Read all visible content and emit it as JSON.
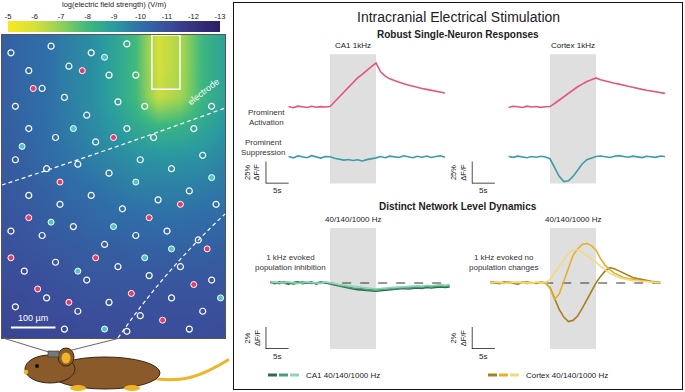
{
  "title": "Intracranial Electrical Stimulation",
  "headings": [
    "Robust Single-Neuron Responses",
    "Distinct Network Level Dynamics"
  ],
  "row_labels": [
    [
      "Prominent",
      "Activation"
    ],
    [
      "Prominent",
      "Suppression"
    ]
  ],
  "chart_data": [
    {
      "type": "heatmap",
      "x": [
        0,
        50,
        100,
        150,
        200,
        250,
        300,
        350,
        400,
        450,
        500
      ],
      "y": [
        0,
        68,
        136,
        204,
        272,
        340,
        408,
        476,
        544,
        612,
        680
      ],
      "cells": [
        [
          -11.3,
          -11.3,
          -11.2,
          -11.2,
          -11.1,
          -11.1,
          -11.0,
          -11.0,
          -11.0,
          -11.0,
          -11.1
        ],
        [
          -11.2,
          -11.1,
          -11.0,
          -11.0,
          -10.9,
          -10.9,
          -10.9,
          -10.9,
          -10.9,
          -10.9,
          -10.9
        ],
        [
          -11.0,
          -11.0,
          -10.9,
          -10.8,
          -10.7,
          -10.7,
          -10.7,
          -10.7,
          -10.7,
          -10.7,
          -10.7
        ],
        [
          -10.9,
          -10.8,
          -10.7,
          -10.6,
          -10.5,
          -10.5,
          -10.4,
          -10.4,
          -10.4,
          -10.4,
          -10.5
        ],
        [
          -10.8,
          -10.7,
          -10.5,
          -10.4,
          -10.2,
          -10.1,
          -10.1,
          -10.0,
          -10.0,
          -10.1,
          -10.1
        ],
        [
          -10.7,
          -10.5,
          -10.4,
          -10.1,
          -10.0,
          -9.8,
          -9.6,
          -9.6,
          -9.6,
          -9.7,
          -9.8
        ],
        [
          -10.6,
          -10.4,
          -10.1,
          -9.9,
          -9.6,
          -9.4,
          -9.2,
          -9.1,
          -9.1,
          -9.2,
          -9.5
        ],
        [
          -10.5,
          -10.3,
          -10.0,
          -9.7,
          -9.4,
          -9.0,
          -8.5,
          -8.1,
          -8.2,
          -8.6,
          -9.1
        ],
        [
          -10.5,
          -10.2,
          -10.0,
          -9.6,
          -9.3,
          -8.7,
          -7.9,
          -6.2,
          -6.7,
          -8.1,
          -8.8
        ],
        [
          -10.5,
          -10.2,
          -10.0,
          -9.6,
          -9.3,
          -8.7,
          -7.9,
          -6.0,
          -6.6,
          -8.1,
          -8.8
        ],
        [
          -10.5,
          -10.2,
          -10.0,
          -9.6,
          -9.3,
          -8.7,
          -7.9,
          -6.0,
          -6.6,
          -8.1,
          -8.8
        ]
      ],
      "xlim": [
        0,
        500
      ],
      "ylim": [
        0,
        680
      ],
      "tick_labels": false,
      "colorbar": {
        "title": "log(electric field strength) (V/m)",
        "range": [
          -5,
          -13
        ],
        "ticks": [
          -5,
          -6,
          -7,
          -8,
          -9,
          -10,
          -11,
          -12,
          -13
        ]
      },
      "label": "electrode",
      "electrode_box": {
        "x": [
          336,
          399
        ],
        "y": [
          558,
          680
        ]
      },
      "scale_bar": {
        "length": 100,
        "label": "100 µm"
      },
      "series": [
        {
          "color": "#ffffff",
          "marker": "circle-open",
          "x": [
            20,
            60,
            110,
            150,
            200,
            240,
            280,
            90,
            30,
            140,
            190,
            260,
            300,
            320,
            60,
            120,
            210,
            280,
            340,
            430,
            470,
            30,
            100,
            170,
            240,
            310,
            380,
            450,
            60,
            130,
            200,
            270,
            350,
            420,
            480,
            20,
            90,
            160,
            230,
            300,
            370,
            440,
            50,
            120,
            190,
            260,
            330,
            400,
            470,
            30,
            100,
            170,
            240,
            310,
            380,
            450,
            140,
            280,
            420
          ],
          "y": [
            640,
            600,
            655,
            610,
            640,
            590,
            660,
            560,
            520,
            540,
            500,
            530,
            590,
            520,
            470,
            450,
            440,
            470,
            450,
            470,
            520,
            400,
            380,
            390,
            370,
            400,
            380,
            410,
            320,
            300,
            320,
            290,
            310,
            330,
            300,
            240,
            230,
            250,
            210,
            230,
            240,
            220,
            150,
            170,
            130,
            160,
            140,
            160,
            130,
            70,
            90,
            60,
            80,
            50,
            90,
            60,
            20,
            15,
            20
          ]
        },
        {
          "color": "#e8396a",
          "marker": "circle",
          "x": [
            70,
            180,
            250,
            400,
            130,
            60,
            330,
            210,
            460,
            80,
            290,
            360,
            20,
            150,
            430
          ],
          "y": [
            560,
            600,
            450,
            300,
            350,
            270,
            270,
            180,
            200,
            110,
            100,
            40,
            180,
            80,
            120
          ]
        },
        {
          "color": "#4fc3c8",
          "marker": "circle",
          "x": [
            230,
            45,
            160,
            300,
            470,
            110,
            250,
            380,
            170,
            320,
            230,
            490
          ],
          "y": [
            630,
            430,
            470,
            350,
            360,
            260,
            250,
            200,
            150,
            180,
            20,
            90
          ]
        }
      ]
    },
    {
      "type": "line",
      "title": "CA1 1kHz",
      "x": [
        -9,
        -8,
        -7,
        -6,
        -5,
        -4,
        -3,
        -2,
        -1,
        0,
        1,
        2,
        3,
        4,
        5,
        6,
        7,
        8,
        9,
        10,
        11,
        12,
        13,
        14,
        15,
        16,
        17,
        18,
        19,
        20,
        21,
        22,
        23,
        24,
        25
      ],
      "xlim": [
        -14,
        26
      ],
      "ylim": [
        -30,
        60
      ],
      "y2lim": [
        -30,
        15
      ],
      "tick_labels": false,
      "stimulus": [
        0,
        10
      ],
      "series": [
        {
          "color": "#e4567f",
          "values": [
            0.5,
            -0.8,
            1.0,
            0.2,
            -0.5,
            0.8,
            -0.3,
            0.4,
            0.0,
            0.5,
            6,
            12,
            17,
            22,
            28,
            33,
            37,
            42,
            46,
            50,
            40,
            35,
            32,
            30,
            28,
            26.5,
            25,
            23.5,
            22.5,
            21,
            20,
            19,
            18,
            17,
            16
          ]
        },
        {
          "color": "#3a9ea6",
          "axis": "y2",
          "values": [
            0.5,
            -1.0,
            1.2,
            0.3,
            -0.8,
            1.5,
            0.0,
            -1.2,
            0.6,
            0.2,
            -1.5,
            -2.5,
            -3.5,
            -2.8,
            -4.0,
            -3.2,
            -4.5,
            -3.0,
            -2.2,
            -1.0,
            0.5,
            -0.8,
            1.0,
            0.2,
            -0.6,
            1.4,
            0.3,
            -0.9,
            0.8,
            -0.2,
            1.1,
            -0.5,
            0.6,
            1.3,
            -0.4
          ]
        }
      ],
      "scale_bars": {
        "x": {
          "length": 5,
          "label": "5s"
        },
        "y": {
          "length": 25,
          "label": [
            "25%",
            "ΔF/F"
          ]
        }
      }
    },
    {
      "type": "line",
      "title": "Cortex 1kHz",
      "x": [
        -9,
        -8,
        -7,
        -6,
        -5,
        -4,
        -3,
        -2,
        -1,
        0,
        1,
        2,
        3,
        4,
        5,
        6,
        7,
        8,
        9,
        10,
        11,
        12,
        13,
        14,
        15,
        16,
        17,
        18,
        19,
        20,
        21,
        22,
        23,
        24,
        25
      ],
      "xlim": [
        -17,
        25
      ],
      "ylim": [
        -30,
        60
      ],
      "y2lim": [
        -30,
        15
      ],
      "tick_labels": false,
      "stimulus": [
        0,
        10
      ],
      "series": [
        {
          "color": "#e4567f",
          "values": [
            -0.5,
            0.8,
            0.2,
            -0.6,
            1.0,
            0.0,
            0.6,
            -0.4,
            0.3,
            0.5,
            4,
            8,
            12,
            16,
            20,
            23,
            26,
            29,
            31,
            33,
            31,
            29.5,
            28,
            27,
            26,
            24.5,
            23.5,
            22.5,
            21,
            20,
            19,
            18,
            17,
            16,
            15.5
          ]
        },
        {
          "color": "#3a9ea6",
          "axis": "y2",
          "values": [
            0.6,
            -0.4,
            1.0,
            0.2,
            -0.8,
            0.5,
            -0.3,
            0.9,
            0.0,
            -2,
            -12,
            -22,
            -28,
            -27,
            -22,
            -15,
            -8,
            -3,
            -1,
            0.5,
            1.2,
            0.4,
            -0.5,
            0.8,
            1.5,
            0.6,
            -0.3,
            1.0,
            0.2,
            -0.7,
            0.9,
            0.3,
            -0.4,
            1.1,
            0.5
          ]
        }
      ],
      "scale_bars": {
        "x": {
          "length": 5,
          "label": "5s"
        },
        "y": {
          "length": 25,
          "label": [
            "25%",
            "ΔF/F"
          ]
        }
      }
    },
    {
      "type": "line",
      "title": "40/140/1000 Hz",
      "annotation": [
        "1 kHz evoked",
        "population inhibition"
      ],
      "caption": "CA1 40/140/1000 Hz",
      "x": [
        -13,
        -12,
        -11,
        -10,
        -9,
        -8,
        -7,
        -6,
        -5,
        -4,
        -3,
        -2,
        -1,
        0,
        1,
        2,
        3,
        4,
        5,
        6,
        7,
        8,
        9,
        10,
        11,
        12,
        13,
        14,
        15,
        16,
        17,
        18,
        19,
        20,
        21,
        22,
        23,
        24,
        25,
        26
      ],
      "xlim": [
        -14,
        27
      ],
      "ylim": [
        -6,
        5
      ],
      "tick_labels": false,
      "stimulus": [
        0,
        10
      ],
      "reference_line": 0,
      "series": [
        {
          "color": "#2f6b4e",
          "values": [
            0.05,
            -0.05,
            0.1,
            0.0,
            -0.1,
            0.05,
            0.1,
            -0.05,
            0.0,
            0.1,
            -0.1,
            0.05,
            0.0,
            -0.1,
            -0.2,
            -0.3,
            -0.4,
            -0.5,
            -0.55,
            -0.6,
            -0.65,
            -0.7,
            -0.7,
            -0.75,
            -0.7,
            -0.65,
            -0.6,
            -0.6,
            -0.55,
            -0.5,
            -0.55,
            -0.5,
            -0.45,
            -0.5,
            -0.4,
            -0.45,
            -0.4,
            -0.35,
            -0.4,
            -0.35
          ]
        },
        {
          "color": "#45a07a",
          "values": [
            0.1,
            0.0,
            -0.05,
            0.1,
            0.05,
            -0.1,
            0.0,
            0.1,
            0.05,
            -0.05,
            0.0,
            0.1,
            0.05,
            0.0,
            -0.1,
            -0.2,
            -0.3,
            -0.35,
            -0.45,
            -0.5,
            -0.5,
            -0.6,
            -0.6,
            -0.65,
            -0.6,
            -0.55,
            -0.5,
            -0.55,
            -0.45,
            -0.4,
            -0.45,
            -0.4,
            -0.35,
            -0.4,
            -0.3,
            -0.35,
            -0.3,
            -0.25,
            -0.3,
            -0.25
          ]
        },
        {
          "color": "#8fd3b0",
          "values": [
            -0.05,
            0.1,
            0.05,
            0.0,
            0.1,
            0.05,
            -0.05,
            0.0,
            0.1,
            0.05,
            0.0,
            -0.05,
            0.1,
            0.05,
            -0.05,
            -0.15,
            -0.2,
            -0.3,
            -0.35,
            -0.4,
            -0.45,
            -0.5,
            -0.5,
            -0.55,
            -0.5,
            -0.45,
            -0.45,
            -0.4,
            -0.35,
            -0.35,
            -0.3,
            -0.3,
            -0.25,
            -0.3,
            -0.2,
            -0.25,
            -0.2,
            -0.15,
            -0.2,
            -0.15
          ]
        }
      ],
      "scale_bars": {
        "x": {
          "length": 5,
          "label": "5s"
        },
        "y": {
          "length": 2,
          "label": [
            "2%",
            "ΔF/F"
          ]
        }
      }
    },
    {
      "type": "line",
      "title": "40/140/1000 Hz",
      "annotation": [
        "1 kHz evoked no",
        "population changes"
      ],
      "caption": "Cortex 40/140/1000 Hz",
      "x": [
        -13,
        -12,
        -11,
        -10,
        -9,
        -8,
        -7,
        -6,
        -5,
        -4,
        -3,
        -2,
        -1,
        0,
        1,
        2,
        3,
        4,
        5,
        6,
        7,
        8,
        9,
        10,
        11,
        12,
        13,
        14,
        15,
        16,
        17,
        18,
        19,
        20,
        21,
        22,
        23,
        24
      ],
      "xlim": [
        -17,
        25
      ],
      "ylim": [
        -6,
        5
      ],
      "tick_labels": false,
      "stimulus": [
        0,
        10
      ],
      "reference_line": 0,
      "series": [
        {
          "color": "#a8801c",
          "values": [
            0.1,
            0.0,
            -0.05,
            0.1,
            0.05,
            0.0,
            -0.1,
            0.05,
            0.1,
            0.0,
            -0.05,
            0.05,
            0.0,
            -0.4,
            -1.4,
            -2.4,
            -3.1,
            -3.5,
            -3.4,
            -3.0,
            -2.3,
            -1.5,
            -0.7,
            0.0,
            0.6,
            1.1,
            1.4,
            1.3,
            1.1,
            0.9,
            0.7,
            0.5,
            0.4,
            0.3,
            0.2,
            0.15,
            0.1,
            0.05
          ]
        },
        {
          "color": "#e2b02a",
          "values": [
            0.05,
            0.1,
            0.0,
            -0.05,
            0.1,
            0.05,
            0.0,
            0.1,
            -0.05,
            0.05,
            0.0,
            0.1,
            0.05,
            -0.5,
            -1.5,
            -1.0,
            0.2,
            1.5,
            2.5,
            3.1,
            3.5,
            3.6,
            3.4,
            3.0,
            2.2,
            1.6,
            1.2,
            0.9,
            0.7,
            0.5,
            0.4,
            0.3,
            0.25,
            0.2,
            0.15,
            0.1,
            0.1,
            0.05
          ]
        },
        {
          "color": "#f5d77c",
          "values": [
            0.0,
            0.05,
            0.1,
            0.0,
            -0.05,
            0.05,
            0.1,
            0.0,
            0.05,
            -0.05,
            0.1,
            0.0,
            0.05,
            0.3,
            0.9,
            1.6,
            2.2,
            2.7,
            3.0,
            3.0,
            2.8,
            2.5,
            2.2,
            1.9,
            1.5,
            1.2,
            0.9,
            0.7,
            0.5,
            0.4,
            0.3,
            0.2,
            0.2,
            0.15,
            0.1,
            0.1,
            0.05,
            0.05
          ]
        }
      ],
      "scale_bars": {
        "x": {
          "length": 5,
          "label": "5s"
        },
        "y": {
          "length": 2,
          "label": [
            "2%",
            "ΔF/F"
          ]
        }
      }
    }
  ]
}
